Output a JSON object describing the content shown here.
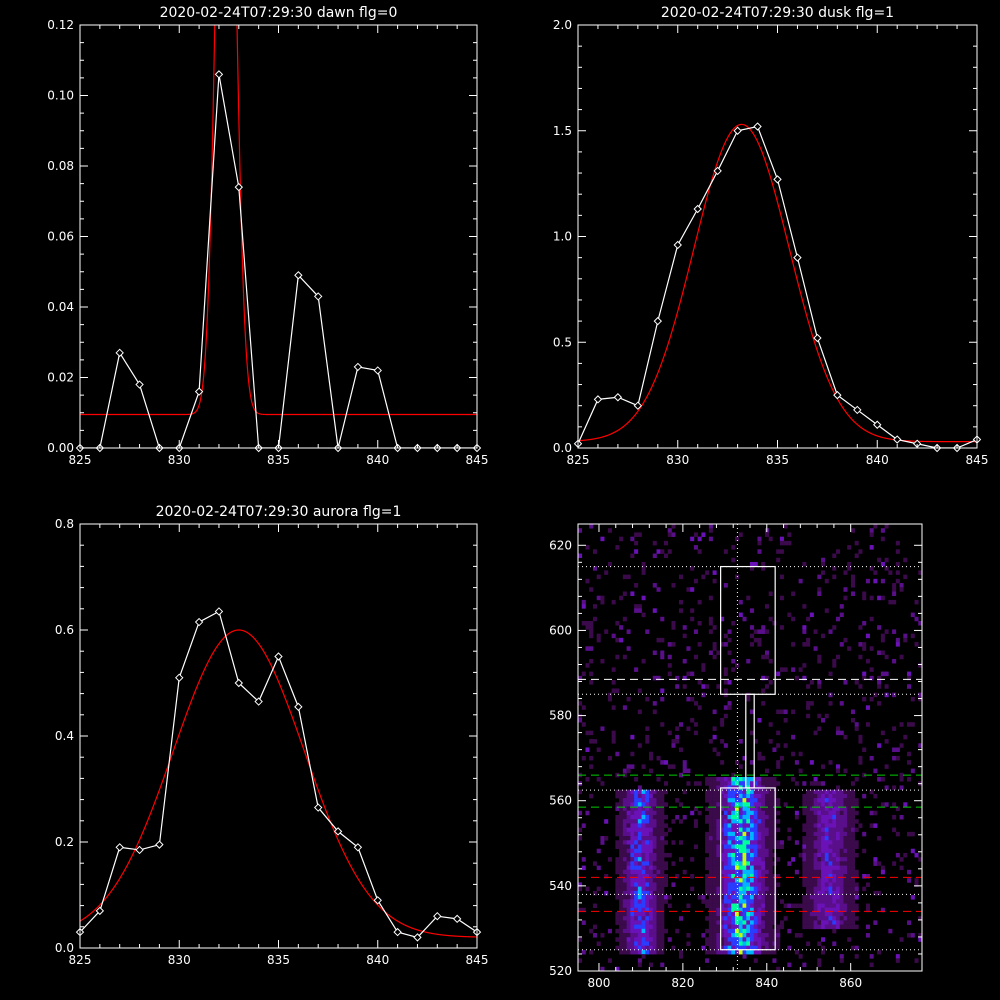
{
  "chart_data": [
    {
      "type": "line",
      "title": "2020-02-24T07:29:30 dawn flg=0",
      "xlim": [
        825,
        845
      ],
      "ylim": [
        0,
        0.12
      ],
      "xticks": [
        "825",
        "830",
        "835",
        "840",
        "845"
      ],
      "yticks": [
        "0.00",
        "0.02",
        "0.04",
        "0.06",
        "0.08",
        "0.10",
        "0.12"
      ],
      "series": [
        {
          "kind": "observed",
          "color": "#ffffff",
          "x": [
            825,
            826,
            827,
            828,
            829,
            830,
            831,
            832,
            833,
            834,
            835,
            836,
            837,
            838,
            839,
            840,
            841,
            842,
            843,
            844,
            845
          ],
          "y": [
            0,
            0,
            0.027,
            0.018,
            0,
            0,
            0.016,
            0.106,
            0.074,
            0,
            0,
            0.049,
            0.043,
            0,
            0.023,
            0.022,
            0,
            0,
            0,
            0,
            0
          ]
        },
        {
          "kind": "fit",
          "color": "#ff0000",
          "model": "gaussian",
          "amplitude": 0.24,
          "center": 832.35,
          "sigma": 0.45,
          "baseline": 0.0095
        }
      ]
    },
    {
      "type": "line",
      "title": "2020-02-24T07:29:30 dusk flg=1",
      "xlim": [
        825,
        845
      ],
      "ylim": [
        0,
        2.0
      ],
      "xticks": [
        "825",
        "830",
        "835",
        "840",
        "845"
      ],
      "yticks": [
        "0.0",
        "0.5",
        "1.0",
        "1.5",
        "2.0"
      ],
      "series": [
        {
          "kind": "observed",
          "color": "#ffffff",
          "x": [
            825,
            826,
            827,
            828,
            829,
            830,
            831,
            832,
            833,
            834,
            835,
            836,
            837,
            838,
            839,
            840,
            841,
            842,
            843,
            844,
            845
          ],
          "y": [
            0.02,
            0.23,
            0.24,
            0.2,
            0.6,
            0.96,
            1.13,
            1.31,
            1.5,
            1.52,
            1.27,
            0.9,
            0.52,
            0.25,
            0.18,
            0.11,
            0.04,
            0.02,
            0.0,
            0.0,
            0.04
          ]
        },
        {
          "kind": "fit",
          "color": "#ff0000",
          "model": "gaussian",
          "amplitude": 1.5,
          "center": 833.2,
          "sigma": 2.4,
          "baseline": 0.03
        }
      ]
    },
    {
      "type": "line",
      "title": "2020-02-24T07:29:30 aurora flg=1",
      "xlim": [
        825,
        845
      ],
      "ylim": [
        0,
        0.8
      ],
      "xticks": [
        "825",
        "830",
        "835",
        "840",
        "845"
      ],
      "yticks": [
        "0.0",
        "0.2",
        "0.4",
        "0.6",
        "0.8"
      ],
      "series": [
        {
          "kind": "observed",
          "color": "#ffffff",
          "x": [
            825,
            826,
            827,
            828,
            829,
            830,
            831,
            832,
            833,
            834,
            835,
            836,
            837,
            838,
            839,
            840,
            841,
            842,
            843,
            844,
            845
          ],
          "y": [
            0.03,
            0.07,
            0.19,
            0.185,
            0.195,
            0.51,
            0.615,
            0.635,
            0.5,
            0.465,
            0.55,
            0.455,
            0.265,
            0.22,
            0.19,
            0.09,
            0.03,
            0.02,
            0.06,
            0.055,
            0.03
          ]
        },
        {
          "kind": "fit",
          "color": "#ff0000",
          "model": "gaussian",
          "amplitude": 0.58,
          "center": 833.0,
          "sigma": 3.3,
          "baseline": 0.02
        }
      ]
    },
    {
      "type": "heatmap",
      "title": "",
      "xlim": [
        795,
        877
      ],
      "ylim": [
        520,
        625
      ],
      "xticks": [
        "800",
        "820",
        "840",
        "860"
      ],
      "yticks": [
        "520",
        "540",
        "560",
        "580",
        "600",
        "620"
      ],
      "colormap": [
        "#000000",
        "#3a0a4a",
        "#5a0f8a",
        "#6a12b8",
        "#2a3cff",
        "#00b4ff",
        "#00ff9c",
        "#c8ff00"
      ],
      "emission_columns": [
        {
          "x_center": 810,
          "width": 6,
          "y_from": 524,
          "y_to": 563,
          "peak": 0.7
        },
        {
          "x_center": 834,
          "width": 8,
          "y_from": 524,
          "y_to": 566,
          "peak": 1.0
        },
        {
          "x_center": 855,
          "width": 7,
          "y_from": 530,
          "y_to": 563,
          "peak": 0.55
        }
      ],
      "vertical_dotted_x": [
        833
      ],
      "windows": [
        {
          "color": "#ffffff",
          "x": [
            829,
            842
          ],
          "y": [
            525,
            563
          ]
        },
        {
          "color": "#ffffff",
          "x": [
            835,
            837
          ],
          "y": [
            563,
            585
          ]
        },
        {
          "color": "#ffffff",
          "x": [
            829,
            842
          ],
          "y": [
            585,
            615
          ]
        }
      ],
      "hlines": [
        {
          "y": 615,
          "color": "#ffffff",
          "style": "dotted"
        },
        {
          "y": 588.5,
          "color": "#ffffff",
          "style": "dashed"
        },
        {
          "y": 585,
          "color": "#ffffff",
          "style": "dotted"
        },
        {
          "y": 566,
          "color": "#00cc00",
          "style": "dashed"
        },
        {
          "y": 562.5,
          "color": "#ffffff",
          "style": "dotted"
        },
        {
          "y": 558.5,
          "color": "#00cc00",
          "style": "dashed"
        },
        {
          "y": 542,
          "color": "#ff0000",
          "style": "dashed"
        },
        {
          "y": 538,
          "color": "#ffffff",
          "style": "dotted"
        },
        {
          "y": 534,
          "color": "#ff0000",
          "style": "dashed"
        },
        {
          "y": 525,
          "color": "#ffffff",
          "style": "dotted"
        }
      ]
    }
  ]
}
